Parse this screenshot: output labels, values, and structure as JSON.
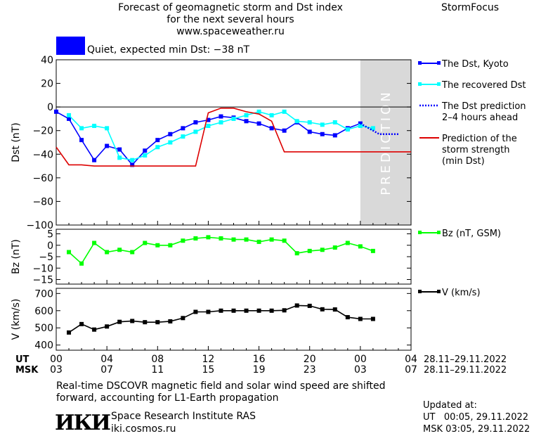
{
  "header": {
    "title_line1": "Forecast of geomagnetic storm and Dst index",
    "title_line2": "for the next several hours",
    "website": "www.spaceweather.ru",
    "brand": "StormFocus"
  },
  "status": {
    "label": "Quiet, expected min Dst: −38 nT",
    "color": "#0000ff"
  },
  "prediction_label": "PREDICTION",
  "time_rows": {
    "ut_label": "UT",
    "msk_label": "MSK",
    "ut_ticks": [
      "00",
      "04",
      "08",
      "12",
      "16",
      "20",
      "00",
      "04"
    ],
    "msk_ticks": [
      "03",
      "07",
      "11",
      "15",
      "19",
      "23",
      "03",
      "07"
    ],
    "ut_range": "28.11–29.11.2022",
    "msk_range": "28.11–29.11.2022"
  },
  "footer": {
    "note_line1": "Real-time DSCOVR magnetic field and solar wind speed are shifted",
    "note_line2": "forward, accounting for L1-Earth propagation",
    "logo_text": "ИКИ",
    "institute": "Space Research Institute RAS",
    "site": "iki.cosmos.ru",
    "updated_label": "Updated at:",
    "updated_ut": "UT   00:05, 29.11.2022",
    "updated_msk": "MSK 03:05, 29.11.2022"
  },
  "chart_data": [
    {
      "type": "line",
      "ylabel": "Dst (nT)",
      "ylim": [
        -100,
        40
      ],
      "yticks": [
        40,
        20,
        0,
        -20,
        -40,
        -60,
        -80,
        -100
      ],
      "xlim": [
        0,
        28
      ],
      "grid": false,
      "legend_position": "right",
      "prediction_shade_x": [
        24,
        28
      ],
      "series": [
        {
          "name": "The Dst, Kyoto",
          "color": "#0000ff",
          "marker": "square",
          "x": [
            0,
            1,
            2,
            3,
            4,
            5,
            6,
            7,
            8,
            9,
            10,
            11,
            12,
            13,
            14,
            15,
            16,
            17,
            18,
            19,
            20,
            21,
            22,
            23,
            24
          ],
          "y": [
            -4,
            -10,
            -28,
            -45,
            -33,
            -36,
            -49,
            -37,
            -28,
            -23,
            -18,
            -13,
            -11,
            -8,
            -9,
            -12,
            -14,
            -18,
            -20,
            -13,
            -21,
            -23,
            -24,
            -18,
            -14
          ]
        },
        {
          "name": "The recovered Dst",
          "color": "#00ffff",
          "marker": "square",
          "x": [
            1,
            2,
            3,
            4,
            5,
            6,
            7,
            8,
            9,
            10,
            11,
            12,
            13,
            14,
            15,
            16,
            17,
            18,
            19,
            20,
            21,
            22,
            23,
            24,
            25
          ],
          "y": [
            -7,
            -18,
            -16,
            -18,
            -43,
            -45,
            -41,
            -34,
            -30,
            -25,
            -21,
            -16,
            -13,
            -10,
            -7,
            -4,
            -7,
            -4,
            -12,
            -13,
            -15,
            -13,
            -19,
            -16,
            -18
          ]
        },
        {
          "name": "The Dst prediction 2–4 hours ahead",
          "color": "#0000ff",
          "dash": "dotted",
          "x": [
            24,
            24.5,
            25,
            25.5,
            26,
            26.5,
            27
          ],
          "y": [
            -14,
            -17,
            -20,
            -23,
            -23,
            -23,
            -23
          ]
        },
        {
          "name": "Prediction of the storm strength (min Dst)",
          "color": "#dd0000",
          "x": [
            0,
            1,
            2,
            3,
            11,
            12,
            13,
            14,
            15,
            16,
            17,
            18,
            28
          ],
          "y": [
            -34,
            -49,
            -49,
            -50,
            -50,
            -5,
            -1,
            -1,
            -4,
            -6,
            -12,
            -38,
            -38
          ]
        }
      ],
      "legend": [
        {
          "lines": [
            "The Dst, Kyoto"
          ],
          "color": "#0000ff",
          "style": "solid-marker"
        },
        {
          "lines": [
            "The recovered Dst"
          ],
          "color": "#00ffff",
          "style": "solid-marker"
        },
        {
          "lines": [
            "The Dst prediction",
            "2–4 hours ahead"
          ],
          "color": "#0000ff",
          "style": "dotted"
        },
        {
          "lines": [
            "Prediction of the",
            "storm strength",
            "(min Dst)"
          ],
          "color": "#dd0000",
          "style": "solid"
        }
      ]
    },
    {
      "type": "line",
      "ylabel": "Bz (nT)",
      "ylim": [
        -17,
        7
      ],
      "yticks": [
        5,
        0,
        -5,
        -10,
        -15
      ],
      "xlim": [
        0,
        28
      ],
      "grid": false,
      "legend_position": "right",
      "series": [
        {
          "name": "Bz (nT, GSM)",
          "color": "#00ff00",
          "marker": "square",
          "x": [
            1,
            2,
            3,
            4,
            5,
            6,
            7,
            8,
            9,
            10,
            11,
            12,
            13,
            14,
            15,
            16,
            17,
            18,
            19,
            20,
            21,
            22,
            23,
            24,
            25
          ],
          "y": [
            -3,
            -8,
            1,
            -3,
            -2,
            -3,
            1,
            0,
            0,
            2,
            3,
            3.5,
            3,
            2.5,
            2.5,
            1.5,
            2.5,
            2,
            -3.5,
            -2.5,
            -2,
            -1,
            1,
            -0.5,
            -2.5
          ]
        }
      ],
      "legend": [
        {
          "lines": [
            "Bz (nT, GSM)"
          ],
          "color": "#00ff00",
          "style": "solid-marker"
        }
      ]
    },
    {
      "type": "line",
      "ylabel": "V (km/s)",
      "ylim": [
        370,
        730
      ],
      "yticks": [
        700,
        600,
        500,
        400
      ],
      "xlim": [
        0,
        28
      ],
      "grid": false,
      "legend_position": "right",
      "series": [
        {
          "name": "V (km/s)",
          "color": "#000000",
          "marker": "square",
          "x": [
            1,
            2,
            3,
            4,
            5,
            6,
            7,
            8,
            9,
            10,
            11,
            12,
            13,
            14,
            15,
            16,
            17,
            18,
            19,
            20,
            21,
            22,
            23,
            24,
            25
          ],
          "y": [
            473,
            522,
            490,
            508,
            535,
            540,
            533,
            533,
            538,
            557,
            593,
            593,
            600,
            600,
            600,
            600,
            600,
            602,
            630,
            628,
            608,
            607,
            562,
            552,
            552
          ]
        }
      ],
      "legend": [
        {
          "lines": [
            "V (km/s)"
          ],
          "color": "#000000",
          "style": "solid-marker"
        }
      ]
    }
  ]
}
